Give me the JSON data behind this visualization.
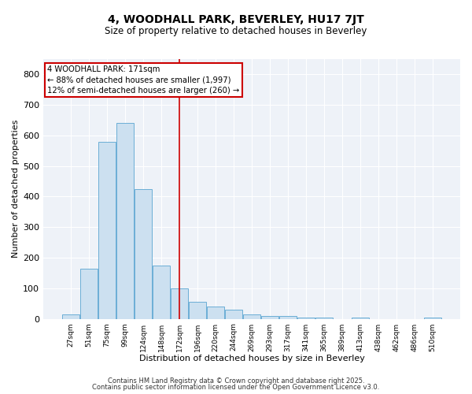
{
  "title": "4, WOODHALL PARK, BEVERLEY, HU17 7JT",
  "subtitle": "Size of property relative to detached houses in Beverley",
  "xlabel": "Distribution of detached houses by size in Beverley",
  "ylabel": "Number of detached properties",
  "bar_color": "#cce0f0",
  "bar_edge_color": "#6baed6",
  "bin_labels": [
    "27sqm",
    "51sqm",
    "75sqm",
    "99sqm",
    "124sqm",
    "148sqm",
    "172sqm",
    "196sqm",
    "220sqm",
    "244sqm",
    "269sqm",
    "293sqm",
    "317sqm",
    "341sqm",
    "365sqm",
    "389sqm",
    "413sqm",
    "438sqm",
    "462sqm",
    "486sqm",
    "510sqm"
  ],
  "bar_heights": [
    15,
    165,
    580,
    640,
    425,
    175,
    100,
    55,
    40,
    30,
    15,
    10,
    10,
    5,
    5,
    0,
    5,
    0,
    0,
    0,
    5
  ],
  "red_line_x": 6,
  "annotation_text": "4 WOODHALL PARK: 171sqm\n← 88% of detached houses are smaller (1,997)\n12% of semi-detached houses are larger (260) →",
  "annotation_box_color": "#ffffff",
  "annotation_box_edge_color": "#cc0000",
  "ylim": [
    0,
    850
  ],
  "yticks": [
    0,
    100,
    200,
    300,
    400,
    500,
    600,
    700,
    800
  ],
  "footer_line1": "Contains HM Land Registry data © Crown copyright and database right 2025.",
  "footer_line2": "Contains public sector information licensed under the Open Government Licence v3.0.",
  "background_color": "#eef2f8",
  "grid_color": "#ffffff",
  "fig_bg_color": "#ffffff"
}
